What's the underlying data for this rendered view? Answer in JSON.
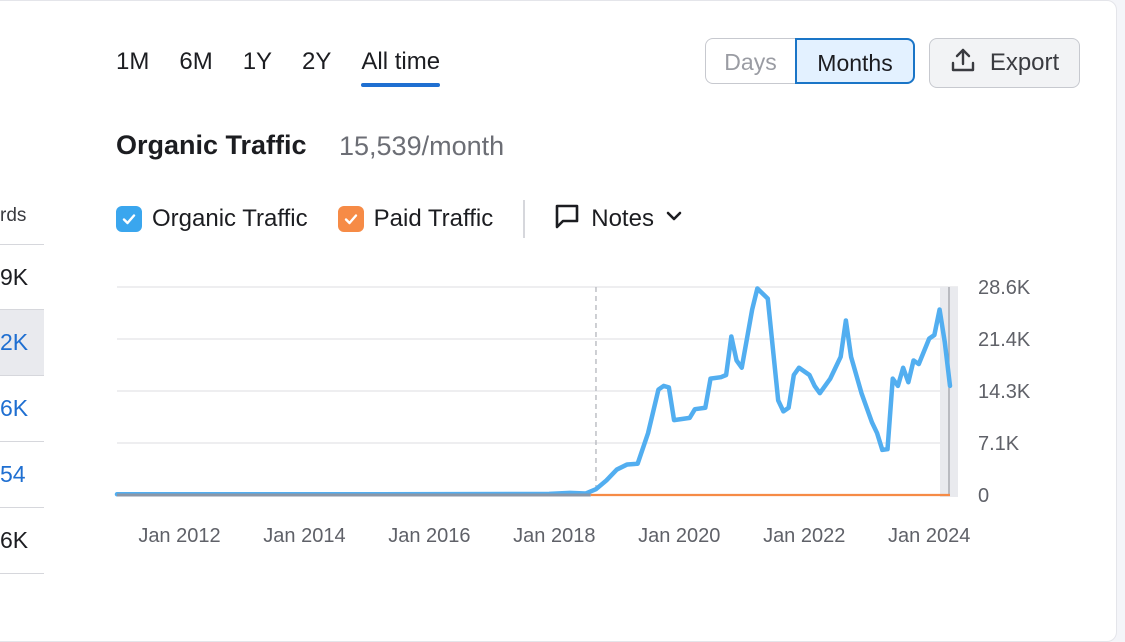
{
  "left_table": {
    "header": "rds",
    "rows": [
      "9K",
      "2K",
      "6K",
      "54",
      "6K"
    ]
  },
  "period_tabs": [
    "1M",
    "6M",
    "1Y",
    "2Y",
    "All time"
  ],
  "active_tab": "All time",
  "granularity": {
    "days": "Days",
    "months": "Months",
    "selected": "Months"
  },
  "export_label": "Export",
  "title": "Organic Traffic",
  "subtitle": "15,539/month",
  "legend": {
    "organic": "Organic Traffic",
    "paid": "Paid Traffic",
    "notes": "Notes"
  },
  "colors": {
    "organic": "#52aef0",
    "paid": "#f68b46",
    "accent": "#1f6fd1"
  },
  "icons": [
    "upload-icon",
    "checkmark-icon",
    "comment-icon",
    "chevron-down-icon"
  ],
  "chart_data": {
    "type": "line",
    "x_tick_labels": [
      "Jan 2012",
      "Jan 2014",
      "Jan 2016",
      "Jan 2018",
      "Jan 2020",
      "Jan 2022",
      "Jan 2024"
    ],
    "y_tick_labels": [
      "0",
      "7.1K",
      "14.3K",
      "21.4K",
      "28.6K"
    ],
    "ylim": [
      0,
      28600
    ],
    "grid": true,
    "xlim": [
      "2011-01",
      "2024-05"
    ],
    "series": [
      {
        "name": "Organic Traffic",
        "points": [
          [
            "2011-01",
            100
          ],
          [
            "2015-01",
            100
          ],
          [
            "2017-12",
            150
          ],
          [
            "2018-04",
            300
          ],
          [
            "2018-07",
            200
          ],
          [
            "2018-09",
            800
          ],
          [
            "2018-11",
            2000
          ],
          [
            "2019-01",
            3500
          ],
          [
            "2019-03",
            4200
          ],
          [
            "2019-05",
            4300
          ],
          [
            "2019-07",
            8500
          ],
          [
            "2019-09",
            14500
          ],
          [
            "2019-10",
            15000
          ],
          [
            "2019-11",
            14800
          ],
          [
            "2019-12",
            10300
          ],
          [
            "2020-01",
            10400
          ],
          [
            "2020-03",
            10600
          ],
          [
            "2020-04",
            11800
          ],
          [
            "2020-06",
            12000
          ],
          [
            "2020-07",
            16000
          ],
          [
            "2020-09",
            16200
          ],
          [
            "2020-10",
            16500
          ],
          [
            "2020-11",
            21800
          ],
          [
            "2020-12",
            18500
          ],
          [
            "2021-01",
            17500
          ],
          [
            "2021-03",
            25500
          ],
          [
            "2021-04",
            28400
          ],
          [
            "2021-06",
            27000
          ],
          [
            "2021-07",
            20000
          ],
          [
            "2021-08",
            13000
          ],
          [
            "2021-09",
            11500
          ],
          [
            "2021-10",
            12000
          ],
          [
            "2021-11",
            16500
          ],
          [
            "2021-12",
            17500
          ],
          [
            "2022-02",
            16500
          ],
          [
            "2022-03",
            15000
          ],
          [
            "2022-04",
            14000
          ],
          [
            "2022-06",
            16000
          ],
          [
            "2022-07",
            17500
          ],
          [
            "2022-08",
            19000
          ],
          [
            "2022-09",
            24000
          ],
          [
            "2022-10",
            19000
          ],
          [
            "2022-11",
            16500
          ],
          [
            "2022-12",
            14000
          ],
          [
            "2023-01",
            12000
          ],
          [
            "2023-02",
            10000
          ],
          [
            "2023-03",
            8500
          ],
          [
            "2023-04",
            6200
          ],
          [
            "2023-05",
            6300
          ],
          [
            "2023-06",
            16000
          ],
          [
            "2023-07",
            15000
          ],
          [
            "2023-08",
            17500
          ],
          [
            "2023-09",
            15500
          ],
          [
            "2023-10",
            18500
          ],
          [
            "2023-11",
            18000
          ],
          [
            "2024-01",
            21500
          ],
          [
            "2024-02",
            22000
          ],
          [
            "2024-03",
            25500
          ],
          [
            "2024-04",
            21000
          ],
          [
            "2024-05",
            15000
          ]
        ]
      },
      {
        "name": "Paid Traffic",
        "points": [
          [
            "2011-01",
            0
          ],
          [
            "2018-08",
            0
          ],
          [
            "2024-05",
            0
          ]
        ]
      }
    ]
  }
}
